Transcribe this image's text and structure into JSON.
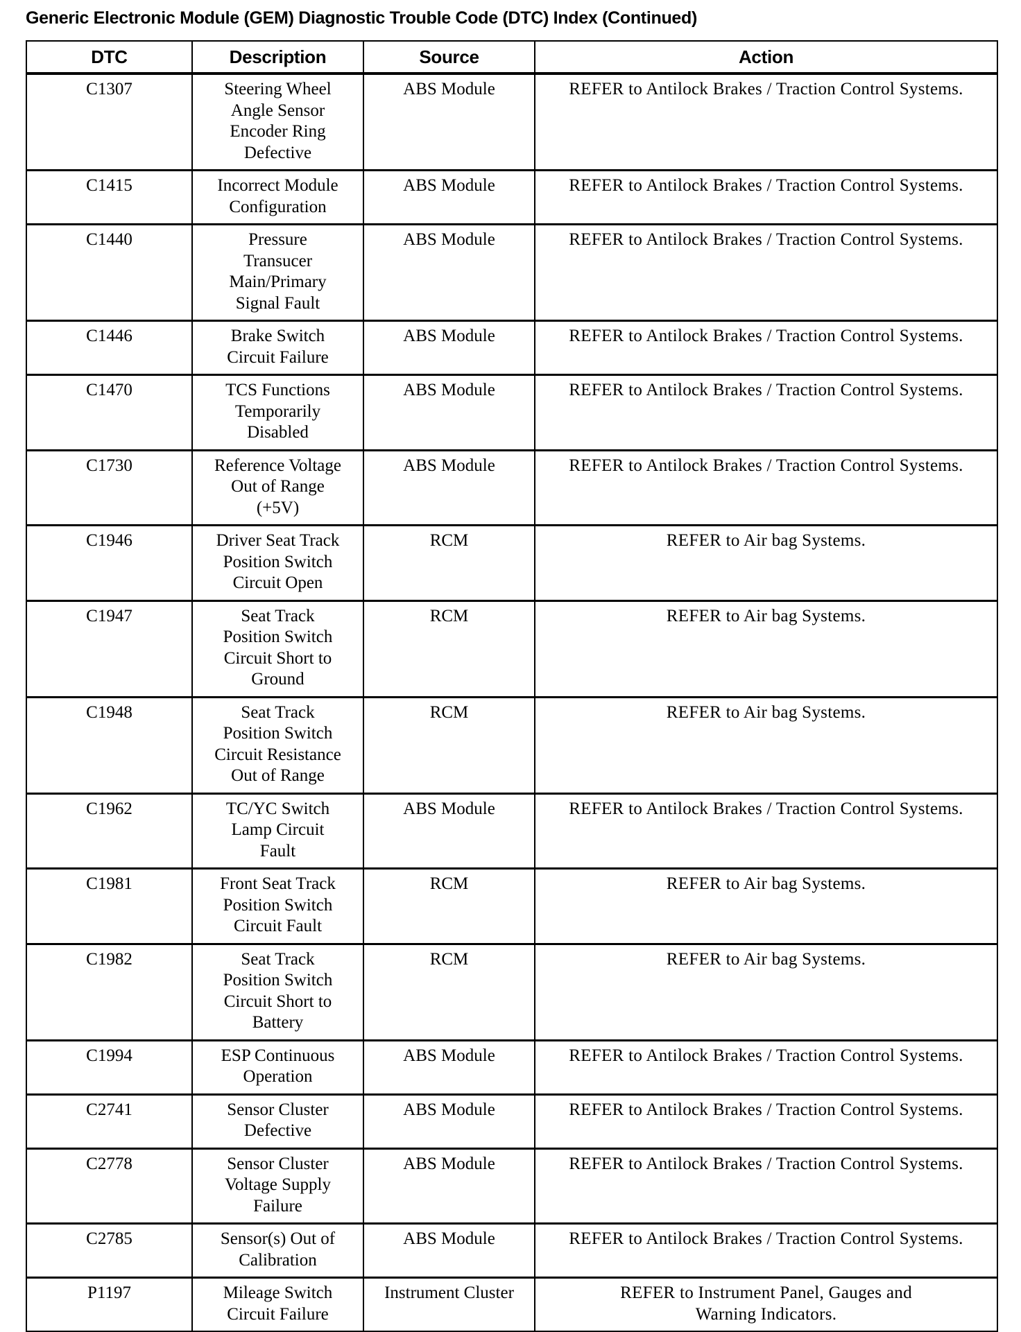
{
  "title": "Generic Electronic Module (GEM) Diagnostic Trouble Code (DTC) Index (Continued)",
  "headers": [
    "DTC",
    "Description",
    "Source",
    "Action"
  ],
  "rows": [
    {
      "dtc": "C1307",
      "description": "Steering Wheel\nAngle Sensor\nEncoder Ring\nDefective",
      "source": "ABS Module",
      "action": "REFER to Antilock Brakes / Traction Control Systems."
    },
    {
      "dtc": "C1415",
      "description": "Incorrect Module\nConfiguration",
      "source": "ABS Module",
      "action": "REFER to Antilock Brakes / Traction Control Systems."
    },
    {
      "dtc": "C1440",
      "description": "Pressure\nTransucer\nMain/Primary\nSignal Fault",
      "source": "ABS Module",
      "action": "REFER to Antilock Brakes / Traction Control Systems."
    },
    {
      "dtc": "C1446",
      "description": "Brake Switch\nCircuit Failure",
      "source": "ABS Module",
      "action": "REFER to Antilock Brakes / Traction Control Systems."
    },
    {
      "dtc": "C1470",
      "description": "TCS Functions\nTemporarily\nDisabled",
      "source": "ABS Module",
      "action": "REFER to Antilock Brakes / Traction Control Systems."
    },
    {
      "dtc": "C1730",
      "description": "Reference Voltage\nOut of Range\n(+5V)",
      "source": "ABS Module",
      "action": "REFER to Antilock Brakes / Traction Control Systems."
    },
    {
      "dtc": "C1946",
      "description": "Driver Seat Track\nPosition Switch\nCircuit Open",
      "source": "RCM",
      "action": "REFER to Air bag Systems."
    },
    {
      "dtc": "C1947",
      "description": "Seat Track\nPosition Switch\nCircuit Short to\nGround",
      "source": "RCM",
      "action": "REFER to Air bag Systems."
    },
    {
      "dtc": "C1948",
      "description": "Seat Track\nPosition Switch\nCircuit Resistance\nOut of Range",
      "source": "RCM",
      "action": "REFER to Air bag Systems."
    },
    {
      "dtc": "C1962",
      "description": "TC/YC Switch\nLamp Circuit\nFault",
      "source": "ABS Module",
      "action": "REFER to Antilock Brakes / Traction Control Systems."
    },
    {
      "dtc": "C1981",
      "description": "Front Seat Track\nPosition Switch\nCircuit Fault",
      "source": "RCM",
      "action": "REFER to Air bag Systems."
    },
    {
      "dtc": "C1982",
      "description": "Seat Track\nPosition Switch\nCircuit Short to\nBattery",
      "source": "RCM",
      "action": "REFER to Air bag Systems."
    },
    {
      "dtc": "C1994",
      "description": "ESP Continuous\nOperation",
      "source": "ABS Module",
      "action": "REFER to Antilock Brakes / Traction Control Systems."
    },
    {
      "dtc": "C2741",
      "description": "Sensor Cluster\nDefective",
      "source": "ABS Module",
      "action": "REFER to Antilock Brakes / Traction Control Systems."
    },
    {
      "dtc": "C2778",
      "description": "Sensor Cluster\nVoltage Supply\nFailure",
      "source": "ABS Module",
      "action": "REFER to Antilock Brakes / Traction Control Systems."
    },
    {
      "dtc": "C2785",
      "description": "Sensor(s) Out of\nCalibration",
      "source": "ABS Module",
      "action": "REFER to Antilock Brakes / Traction Control Systems."
    },
    {
      "dtc": "P1197",
      "description": "Mileage Switch\nCircuit Failure",
      "source": "Instrument Cluster",
      "action": "REFER to Instrument Panel, Gauges and\nWarning Indicators."
    }
  ]
}
